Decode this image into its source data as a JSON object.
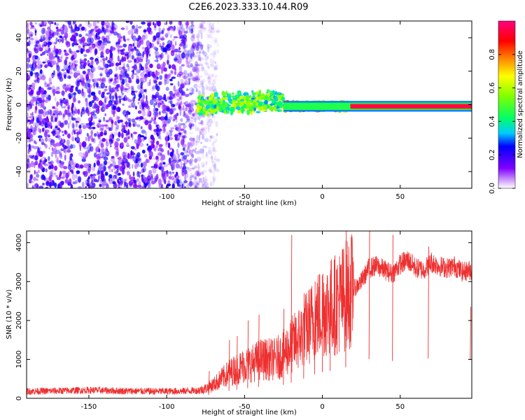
{
  "title": "C2E6.2023.333.10.44.R09",
  "chart_data": [
    {
      "type": "heatmap",
      "title": "C2E6.2023.333.10.44.R09",
      "xlabel": "Height of straight line (km)",
      "ylabel": "Frequency (Hz)",
      "xlim": [
        -190,
        96
      ],
      "ylim": [
        -50,
        50
      ],
      "x_ticks": [
        -150,
        -100,
        -50,
        0,
        50
      ],
      "x_tick_labels": [
        "-150",
        "-100",
        "-50",
        "0",
        "50"
      ],
      "y_ticks": [
        -40,
        -20,
        0,
        20,
        40
      ],
      "y_tick_labels": [
        "-40",
        "-20",
        "0",
        "20",
        "40"
      ],
      "colorbar": {
        "label": "Normalized spectral amplitude",
        "range": [
          0,
          1
        ],
        "ticks": [
          0.0,
          0.2,
          0.4,
          0.6,
          0.8
        ],
        "tick_labels": [
          "0.0",
          "0.2",
          "0.4",
          "0.6",
          "0.8"
        ],
        "colors": [
          "#ffffff",
          "#cc99ff",
          "#8000ff",
          "#0000ff",
          "#00ccff",
          "#00ff66",
          "#80ff00",
          "#ffff00",
          "#ff8000",
          "#ff0000",
          "#ff0080"
        ]
      },
      "regions": [
        {
          "x_range": [
            -190,
            -73
          ],
          "freq_spread": 50,
          "amplitude": [
            0.05,
            0.25
          ],
          "description_color": "#8000ff"
        },
        {
          "x_range": [
            -80,
            -25
          ],
          "center_freq": 1,
          "freq_spread": 7,
          "amplitude": [
            0.3,
            0.65
          ]
        },
        {
          "x_range": [
            -25,
            18
          ],
          "center_freq": -1,
          "freq_spread": 3,
          "amplitude": [
            0.5,
            0.9
          ]
        },
        {
          "x_range": [
            18,
            96
          ],
          "center_freq": -1,
          "freq_spread": 1.5,
          "amplitude": [
            0.9,
            1.0
          ]
        }
      ]
    },
    {
      "type": "line",
      "xlabel": "Height of straight line (km)",
      "ylabel": "SNR (10 * v/v)",
      "xlim": [
        -190,
        96
      ],
      "ylim": [
        0,
        4300
      ],
      "x_ticks": [
        -150,
        -100,
        -50,
        0,
        50
      ],
      "x_tick_labels": [
        "-150",
        "-100",
        "-50",
        "0",
        "50"
      ],
      "y_ticks": [
        0,
        1000,
        2000,
        3000,
        4000
      ],
      "y_tick_labels": [
        "0",
        "1000",
        "2000",
        "3000",
        "4000"
      ],
      "color": "#ee3030",
      "series": [
        {
          "x": [
            -190,
            -180,
            -170,
            -160,
            -150,
            -140,
            -130,
            -120,
            -110,
            -100,
            -90,
            -80,
            -75,
            -70,
            -65,
            -60,
            -55,
            -50,
            -45,
            -40,
            -35,
            -30,
            -25,
            -20,
            -15,
            -10,
            -5,
            0,
            5,
            10,
            15,
            20,
            25,
            30,
            35,
            40,
            45,
            50,
            55,
            60,
            65,
            70,
            75,
            80,
            85,
            90,
            96
          ],
          "y": [
            180,
            185,
            190,
            200,
            210,
            200,
            190,
            185,
            180,
            180,
            185,
            200,
            250,
            350,
            500,
            650,
            750,
            850,
            900,
            1000,
            1000,
            1000,
            1150,
            1350,
            1550,
            1800,
            2050,
            2250,
            2350,
            2450,
            2650,
            2800,
            3000,
            3350,
            3400,
            3300,
            3200,
            3450,
            3550,
            3350,
            3300,
            3500,
            3400,
            3350,
            3400,
            3250,
            3300
          ]
        }
      ],
      "noise": {
        "lower_band_amplitude": 90,
        "spikes": [
          {
            "x": -73,
            "y": 700
          },
          {
            "x": -60,
            "y": 1500
          },
          {
            "x": -55,
            "y": 1600
          },
          {
            "x": -48,
            "y": 2000
          },
          {
            "x": -41,
            "y": 2150
          },
          {
            "x": -25,
            "y": 2300
          },
          {
            "x": -20,
            "y": 4200
          },
          {
            "x": -12,
            "y": 2700
          },
          {
            "x": -5,
            "y": 3000
          },
          {
            "x": 0,
            "y": 3200
          },
          {
            "x": 5,
            "y": 3300
          },
          {
            "x": 15,
            "y": 4300
          },
          {
            "x": 30,
            "y": 4300
          },
          {
            "x": 45,
            "y": 4200
          },
          {
            "x": 68,
            "y": 3900
          },
          {
            "x": 95,
            "y": 2350
          }
        ]
      }
    }
  ]
}
